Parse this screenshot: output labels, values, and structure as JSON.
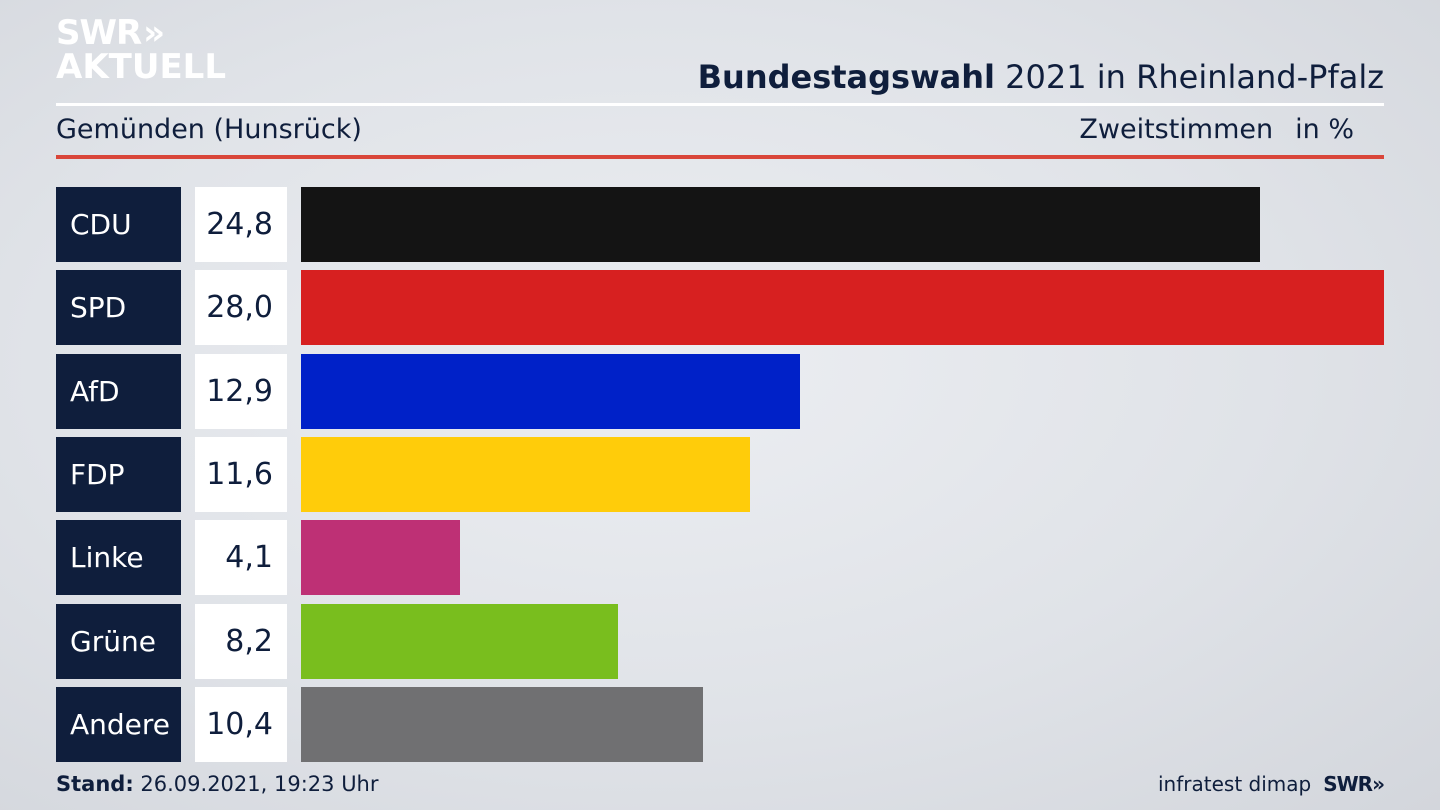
{
  "logo": {
    "line1": "SWR",
    "arrows": "»",
    "line2": "AKTUELL"
  },
  "header": {
    "title_bold": "Bundestagswahl",
    "title_rest": "2021 in Rheinland-Pfalz"
  },
  "subheader": {
    "location": "Gemünden (Hunsrück)",
    "vote_type": "Zweitstimmen",
    "unit": "in %"
  },
  "footer": {
    "stand_label": "Stand:",
    "stand_value": "26.09.2021, 19:23 Uhr",
    "source": "infratest dimap",
    "brand": "SWR",
    "brand_arrows": "»"
  },
  "chart_data": {
    "type": "bar",
    "orientation": "horizontal",
    "categories": [
      "CDU",
      "SPD",
      "AfD",
      "FDP",
      "Linke",
      "Grüne",
      "Andere"
    ],
    "values": [
      24.8,
      28.0,
      12.9,
      11.6,
      4.1,
      8.2,
      10.4
    ],
    "value_labels": [
      "24,8",
      "28,0",
      "12,9",
      "11,6",
      "4,1",
      "8,2",
      "10,4"
    ],
    "colors": [
      "#141414",
      "#d72020",
      "#0021c8",
      "#ffcc0a",
      "#be3075",
      "#79be1e",
      "#707072"
    ],
    "title": "Bundestagswahl 2021 in Rheinland-Pfalz",
    "subtitle": "Gemünden (Hunsrück)",
    "ylabel": "Zweitstimmen",
    "unit": "in %"
  }
}
